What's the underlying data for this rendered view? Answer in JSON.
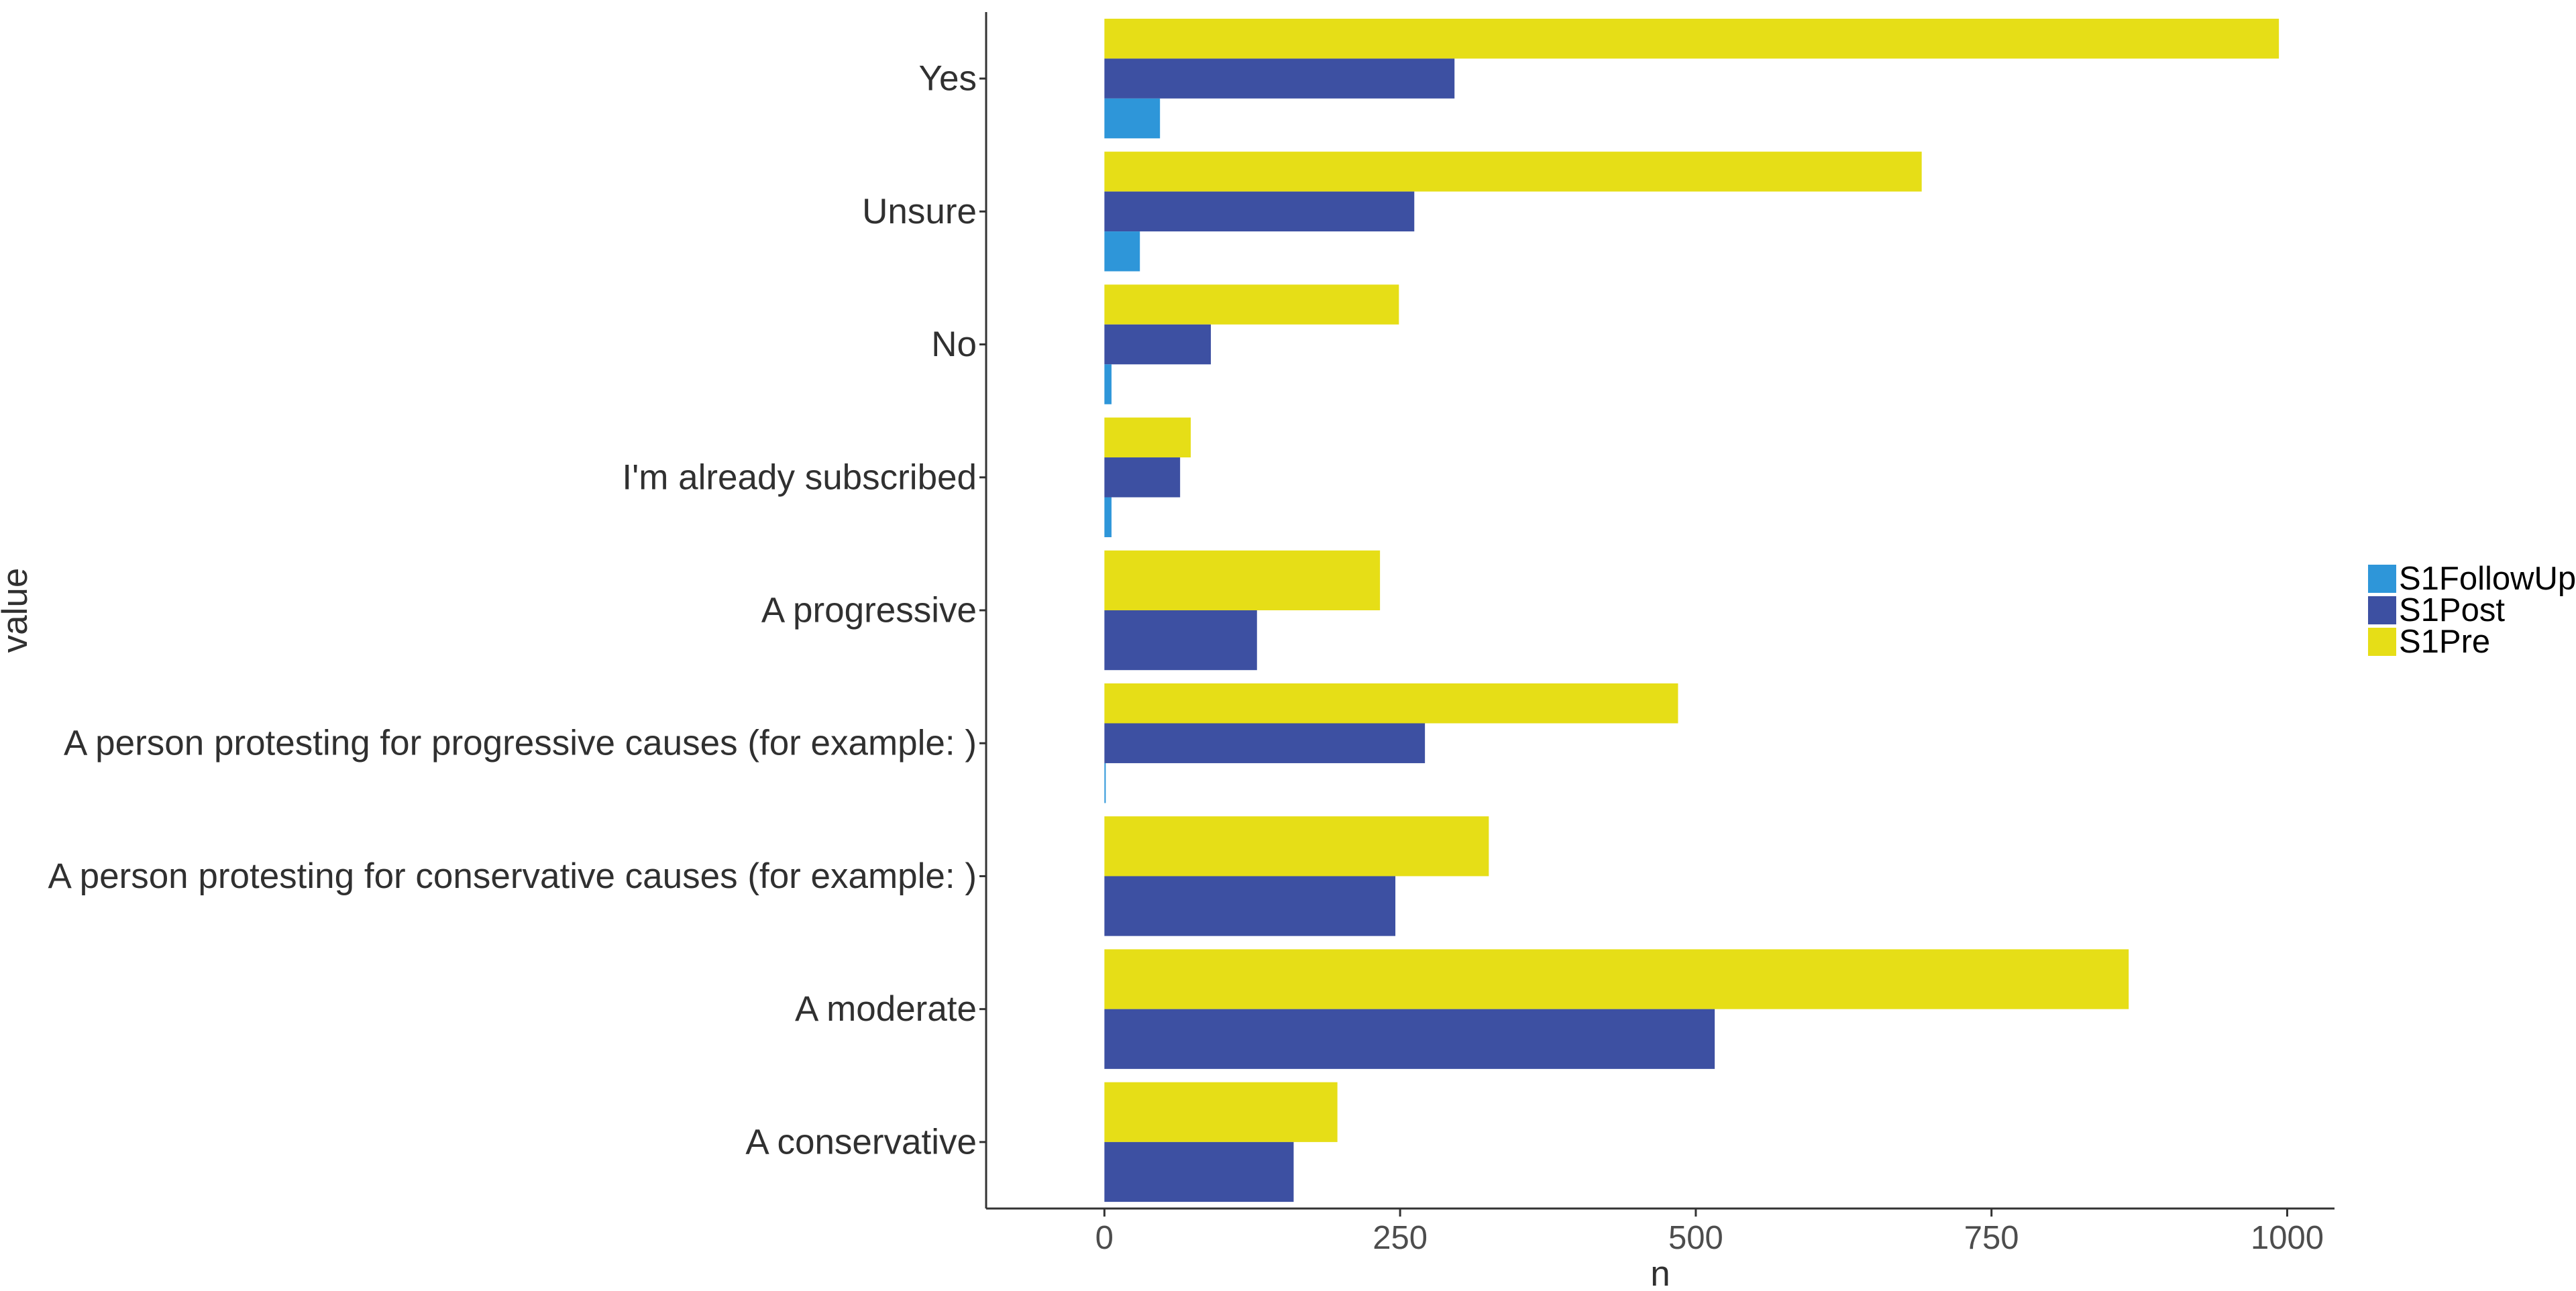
{
  "chart_data": {
    "type": "bar",
    "orientation": "horizontal",
    "xlabel": "n",
    "ylabel": "value",
    "xlim": [
      -100,
      1040
    ],
    "xticks": [
      0,
      250,
      500,
      750,
      1000
    ],
    "xtick_labels": [
      "0",
      "250",
      "500",
      "750",
      "1000"
    ],
    "grid": false,
    "legend_position": "right",
    "categories": [
      "Yes",
      "Unsure",
      "No",
      "I'm already subscribed",
      "A progressive",
      "A person protesting for progressive causes (for example: )",
      "A person protesting for conservative causes (for example: )",
      "A moderate",
      "A conservative"
    ],
    "series": [
      {
        "name": "S1FollowUp",
        "color": "#2e96d9",
        "values": [
          47,
          30,
          6,
          6,
          null,
          1,
          null,
          null,
          null
        ]
      },
      {
        "name": "S1Post",
        "color": "#3d50a2",
        "values": [
          296,
          262,
          90,
          64,
          129,
          271,
          246,
          516,
          160
        ]
      },
      {
        "name": "S1Pre",
        "color": "#e6de17",
        "values": [
          993,
          691,
          249,
          73,
          233,
          485,
          325,
          866,
          197
        ]
      }
    ]
  }
}
